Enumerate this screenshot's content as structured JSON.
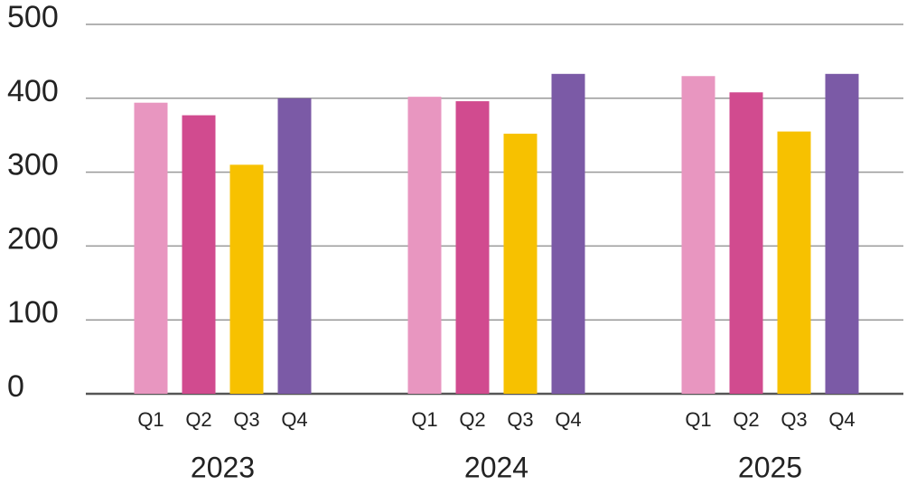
{
  "chart_data": {
    "type": "bar",
    "categories": [
      "2023",
      "2024",
      "2025"
    ],
    "series": [
      {
        "name": "Q1",
        "color": "#e896c0",
        "values": [
          394,
          402,
          430
        ]
      },
      {
        "name": "Q2",
        "color": "#d14b8f",
        "values": [
          377,
          396,
          408
        ]
      },
      {
        "name": "Q3",
        "color": "#f7c100",
        "values": [
          310,
          352,
          355
        ]
      },
      {
        "name": "Q4",
        "color": "#7b5aa6",
        "values": [
          400,
          433,
          433
        ]
      }
    ],
    "ylim": [
      0,
      500
    ],
    "yticks": [
      0,
      100,
      200,
      300,
      400,
      500
    ],
    "grid": true
  }
}
